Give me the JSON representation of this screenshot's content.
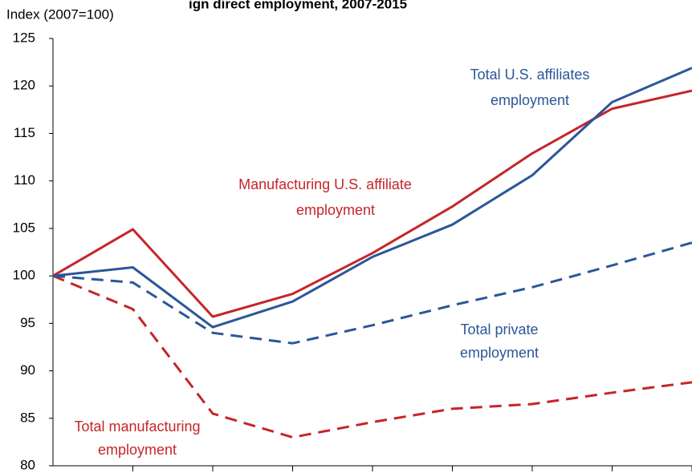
{
  "chart_data": {
    "type": "line",
    "title": "ign direct employment, 2007-2015",
    "ylabel": "Index (2007=100)",
    "xlabel": "",
    "x": [
      0,
      1,
      2,
      3,
      4,
      5,
      6,
      7,
      8
    ],
    "xlim": [
      0,
      8
    ],
    "ylim": [
      80,
      125
    ],
    "yticks": [
      "80",
      "85",
      "90",
      "95",
      "100",
      "105",
      "110",
      "115",
      "120",
      "125"
    ],
    "grid": false,
    "series": [
      {
        "name": "Total U.S. affiliates employment",
        "values": [
          100,
          100.9,
          94.6,
          97.3,
          102.0,
          105.4,
          110.6,
          118.3,
          121.9
        ],
        "color": "#2b5797",
        "style": "solid"
      },
      {
        "name": "Manufacturing U.S. affiliate employment",
        "values": [
          100,
          104.9,
          95.7,
          98.1,
          102.4,
          107.3,
          112.9,
          117.6,
          119.5
        ],
        "color": "#c5252a",
        "style": "solid"
      },
      {
        "name": "Total private employment",
        "values": [
          100,
          99.3,
          94.0,
          92.9,
          94.8,
          96.9,
          98.8,
          101.1,
          103.5
        ],
        "color": "#2b5797",
        "style": "dashed"
      },
      {
        "name": "Total manufacturing employment",
        "values": [
          100,
          96.5,
          85.5,
          83.0,
          84.6,
          86.0,
          86.5,
          87.7,
          88.8
        ],
        "color": "#c5252a",
        "style": "dashed"
      }
    ],
    "annotations": [
      {
        "series": "Total U.S. affiliates employment",
        "lines": [
          "Total U.S. affiliates",
          "employment"
        ],
        "color": "#2b5797"
      },
      {
        "series": "Manufacturing U.S. affiliate employment",
        "lines": [
          "Manufacturing U.S. affiliate",
          "employment"
        ],
        "color": "#c5252a"
      },
      {
        "series": "Total private employment",
        "lines": [
          "Total private",
          "employment"
        ],
        "color": "#2b5797"
      },
      {
        "series": "Total manufacturing employment",
        "lines": [
          "Total manufacturing",
          "employment"
        ],
        "color": "#c5252a"
      }
    ]
  }
}
